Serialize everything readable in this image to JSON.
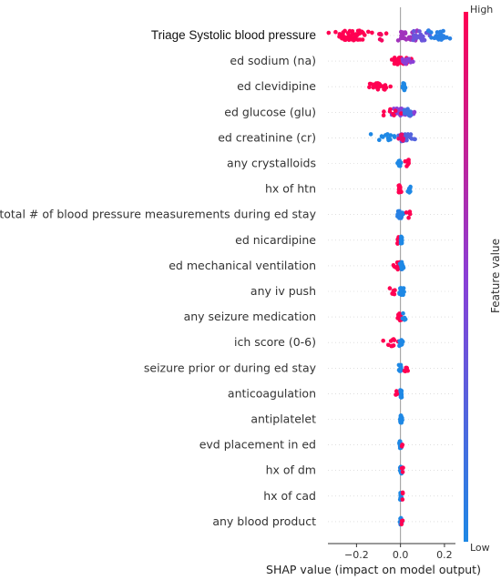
{
  "chart_data": {
    "type": "scatter",
    "subtype": "shap-beeswarm",
    "xlabel": "SHAP value (impact on model output)",
    "xlim": [
      -0.33,
      0.25
    ],
    "xticks": [
      -0.2,
      0.0,
      0.2
    ],
    "xtick_labels": [
      "−0.2",
      "0.0",
      "0.2"
    ],
    "colorbar": {
      "title": "Feature value",
      "high_label": "High",
      "low_label": "Low",
      "low_color": "#1e88e5",
      "high_color": "#ff0052"
    },
    "features": [
      {
        "name": "Triage Systolic blood pressure",
        "spread": "wide"
      },
      {
        "name": "ed sodium (na)"
      },
      {
        "name": "ed clevidipine"
      },
      {
        "name": "ed glucose (glu)"
      },
      {
        "name": "ed creatinine (cr)"
      },
      {
        "name": "any crystalloids"
      },
      {
        "name": "hx of htn"
      },
      {
        "name": "total # of blood pressure measurements during ed stay"
      },
      {
        "name": "ed nicardipine"
      },
      {
        "name": "ed mechanical ventilation"
      },
      {
        "name": "any iv push"
      },
      {
        "name": "any seizure medication"
      },
      {
        "name": "ich score (0-6)"
      },
      {
        "name": "seizure prior or during ed stay"
      },
      {
        "name": "anticoagulation"
      },
      {
        "name": "antiplatelet"
      },
      {
        "name": "evd placement in ed"
      },
      {
        "name": "hx of dm"
      },
      {
        "name": "hx of cad"
      },
      {
        "name": "any blood product"
      }
    ],
    "clusters": [
      [
        {
          "x": -0.22,
          "sd": 0.04,
          "n": 48,
          "color": 1.0
        },
        {
          "x": -0.09,
          "sd": 0.015,
          "n": 6,
          "color": 0.95
        },
        {
          "x": 0.03,
          "sd": 0.025,
          "n": 22,
          "color": 0.6
        },
        {
          "x": 0.09,
          "sd": 0.025,
          "n": 18,
          "color": 0.35
        },
        {
          "x": 0.17,
          "sd": 0.03,
          "n": 30,
          "color": 0.05
        }
      ],
      [
        {
          "x": -0.01,
          "sd": 0.02,
          "n": 30,
          "color": 1.0
        },
        {
          "x": 0.03,
          "sd": 0.015,
          "n": 16,
          "color": 0.5
        }
      ],
      [
        {
          "x": -0.1,
          "sd": 0.03,
          "n": 22,
          "color": 1.0
        },
        {
          "x": 0.015,
          "sd": 0.004,
          "n": 18,
          "color": 0.0
        }
      ],
      [
        {
          "x": 0.0,
          "sd": 0.025,
          "n": 40,
          "color": 0.5
        },
        {
          "x": -0.04,
          "sd": 0.015,
          "n": 8,
          "color": 1.0
        },
        {
          "x": 0.03,
          "sd": 0.01,
          "n": 10,
          "color": 0.15
        }
      ],
      [
        {
          "x": -0.04,
          "sd": 0.035,
          "n": 18,
          "color": 0.0
        },
        {
          "x": 0.02,
          "sd": 0.015,
          "n": 28,
          "color": 0.25
        },
        {
          "x": 0.005,
          "sd": 0.01,
          "n": 8,
          "color": 0.9
        }
      ],
      [
        {
          "x": -0.005,
          "sd": 0.004,
          "n": 14,
          "color": 0.0
        },
        {
          "x": 0.035,
          "sd": 0.006,
          "n": 8,
          "color": 1.0
        }
      ],
      [
        {
          "x": -0.005,
          "sd": 0.003,
          "n": 18,
          "color": 1.0
        },
        {
          "x": 0.035,
          "sd": 0.005,
          "n": 6,
          "color": 0.0
        }
      ],
      [
        {
          "x": 0.0,
          "sd": 0.008,
          "n": 22,
          "color": 0.05
        },
        {
          "x": 0.04,
          "sd": 0.008,
          "n": 6,
          "color": 1.0
        }
      ],
      [
        {
          "x": -0.01,
          "sd": 0.005,
          "n": 12,
          "color": 1.0
        },
        {
          "x": 0.005,
          "sd": 0.003,
          "n": 16,
          "color": 0.0
        }
      ],
      [
        {
          "x": -0.01,
          "sd": 0.008,
          "n": 14,
          "color": 1.0
        },
        {
          "x": 0.006,
          "sd": 0.004,
          "n": 18,
          "color": 0.0
        }
      ],
      [
        {
          "x": -0.03,
          "sd": 0.01,
          "n": 8,
          "color": 1.0
        },
        {
          "x": 0.004,
          "sd": 0.006,
          "n": 22,
          "color": 0.0
        }
      ],
      [
        {
          "x": -0.005,
          "sd": 0.005,
          "n": 18,
          "color": 1.0
        },
        {
          "x": 0.015,
          "sd": 0.005,
          "n": 8,
          "color": 0.0
        }
      ],
      [
        {
          "x": -0.03,
          "sd": 0.012,
          "n": 10,
          "color": 1.0
        },
        {
          "x": 0.004,
          "sd": 0.005,
          "n": 20,
          "color": 0.0
        }
      ],
      [
        {
          "x": 0.0,
          "sd": 0.004,
          "n": 18,
          "color": 0.0
        },
        {
          "x": 0.025,
          "sd": 0.004,
          "n": 5,
          "color": 1.0
        }
      ],
      [
        {
          "x": 0.003,
          "sd": 0.003,
          "n": 18,
          "color": 0.0
        },
        {
          "x": -0.015,
          "sd": 0.003,
          "n": 3,
          "color": 1.0
        }
      ],
      [
        {
          "x": 0.002,
          "sd": 0.003,
          "n": 18,
          "color": 0.0
        }
      ],
      [
        {
          "x": 0.0,
          "sd": 0.003,
          "n": 18,
          "color": 0.0
        },
        {
          "x": 0.008,
          "sd": 0.002,
          "n": 3,
          "color": 1.0
        }
      ],
      [
        {
          "x": 0.002,
          "sd": 0.003,
          "n": 16,
          "color": 0.0
        },
        {
          "x": 0.01,
          "sd": 0.003,
          "n": 3,
          "color": 1.0
        }
      ],
      [
        {
          "x": 0.002,
          "sd": 0.003,
          "n": 16,
          "color": 0.0
        },
        {
          "x": 0.008,
          "sd": 0.003,
          "n": 3,
          "color": 1.0
        }
      ],
      [
        {
          "x": 0.001,
          "sd": 0.003,
          "n": 16,
          "color": 0.0
        },
        {
          "x": 0.009,
          "sd": 0.003,
          "n": 3,
          "color": 1.0
        }
      ]
    ]
  }
}
